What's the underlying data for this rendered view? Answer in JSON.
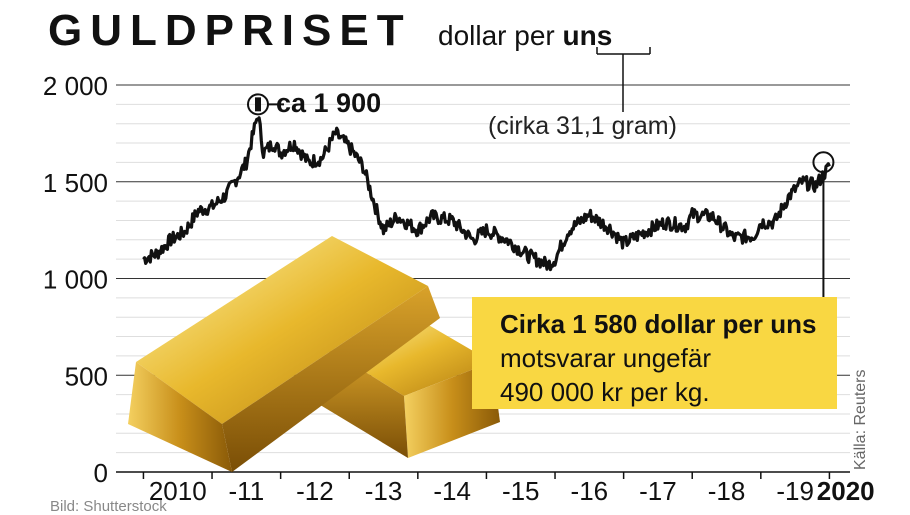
{
  "header": {
    "title": "GULDPRISET",
    "subtitle_plain": "dollar per ",
    "subtitle_bold": "uns",
    "unit_note": "(cirka 31,1 gram)"
  },
  "annotations": {
    "peak_label": "ca 1 900",
    "info_strong": "Cirka 1 580 dollar per uns",
    "info_rest_1": " motsvarar ungefär",
    "info_rest_2": "490 000 kr per kg."
  },
  "source": "Källa: Reuters",
  "photo_credit": "Bild: Shutterstock",
  "chart_data": {
    "type": "line",
    "title": "GULDPRISET",
    "xlabel": "",
    "ylabel": "dollar per uns",
    "ylim": [
      0,
      2000
    ],
    "y_ticks": [
      0,
      500,
      1000,
      1500,
      2000
    ],
    "y_tick_labels": [
      "0",
      "500",
      "1 000",
      "1 500",
      "2 000"
    ],
    "x_tick_labels": [
      "2010",
      "-11",
      "-12",
      "-13",
      "-14",
      "-15",
      "-16",
      "-17",
      "-18",
      "-19",
      "2020"
    ],
    "grid": true,
    "x": [
      2010.0,
      2010.2,
      2010.4,
      2010.6,
      2010.8,
      2011.0,
      2011.2,
      2011.4,
      2011.5,
      2011.67,
      2011.75,
      2011.9,
      2012.0,
      2012.2,
      2012.4,
      2012.6,
      2012.8,
      2013.0,
      2013.2,
      2013.4,
      2013.5,
      2013.7,
      2014.0,
      2014.2,
      2014.5,
      2014.8,
      2015.0,
      2015.3,
      2015.6,
      2015.9,
      2016.0,
      2016.2,
      2016.5,
      2016.8,
      2017.0,
      2017.3,
      2017.6,
      2017.9,
      2018.0,
      2018.3,
      2018.6,
      2018.9,
      2019.0,
      2019.2,
      2019.4,
      2019.6,
      2019.8,
      2020.0
    ],
    "values": [
      1100,
      1130,
      1200,
      1240,
      1350,
      1370,
      1430,
      1540,
      1600,
      1850,
      1650,
      1700,
      1650,
      1700,
      1600,
      1620,
      1750,
      1680,
      1580,
      1350,
      1250,
      1320,
      1250,
      1320,
      1300,
      1200,
      1250,
      1200,
      1120,
      1070,
      1100,
      1250,
      1330,
      1260,
      1180,
      1240,
      1290,
      1270,
      1330,
      1320,
      1210,
      1220,
      1290,
      1290,
      1420,
      1500,
      1480,
      1580
    ],
    "annotated_points": [
      {
        "x": 2011.67,
        "y": 1900,
        "label": "ca 1 900"
      },
      {
        "x": 2020.0,
        "y": 1580
      }
    ]
  }
}
